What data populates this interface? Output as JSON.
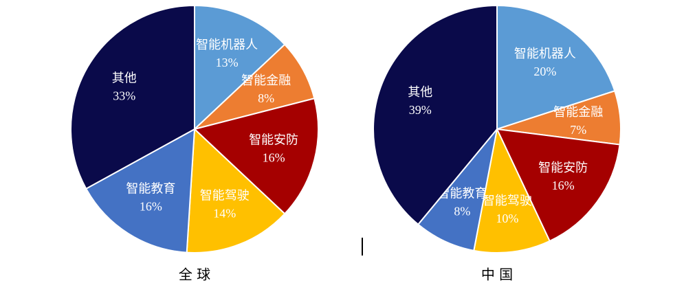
{
  "chart_data": [
    {
      "type": "pie",
      "title": "全 球",
      "categories": [
        "智能机器人",
        "智能金融",
        "智能安防",
        "智能驾驶",
        "智能教育",
        "其他"
      ],
      "values": [
        13,
        8,
        16,
        14,
        16,
        33
      ],
      "value_labels": [
        "13%",
        "8%",
        "16%",
        "14%",
        "16%",
        "33%"
      ],
      "colors": [
        "#5b9bd5",
        "#ed7d31",
        "#a50000",
        "#ffc000",
        "#4472c4",
        "#0a0a4a"
      ]
    },
    {
      "type": "pie",
      "title": "中 国",
      "categories": [
        "智能机器人",
        "智能金融",
        "智能安防",
        "智能驾驶",
        "智能教育",
        "其他"
      ],
      "values": [
        20,
        7,
        16,
        10,
        8,
        39
      ],
      "value_labels": [
        "20%",
        "7%",
        "16%",
        "10%",
        "8%",
        "39%"
      ],
      "colors": [
        "#5b9bd5",
        "#ed7d31",
        "#a50000",
        "#ffc000",
        "#4472c4",
        "#0a0a4a"
      ]
    }
  ]
}
